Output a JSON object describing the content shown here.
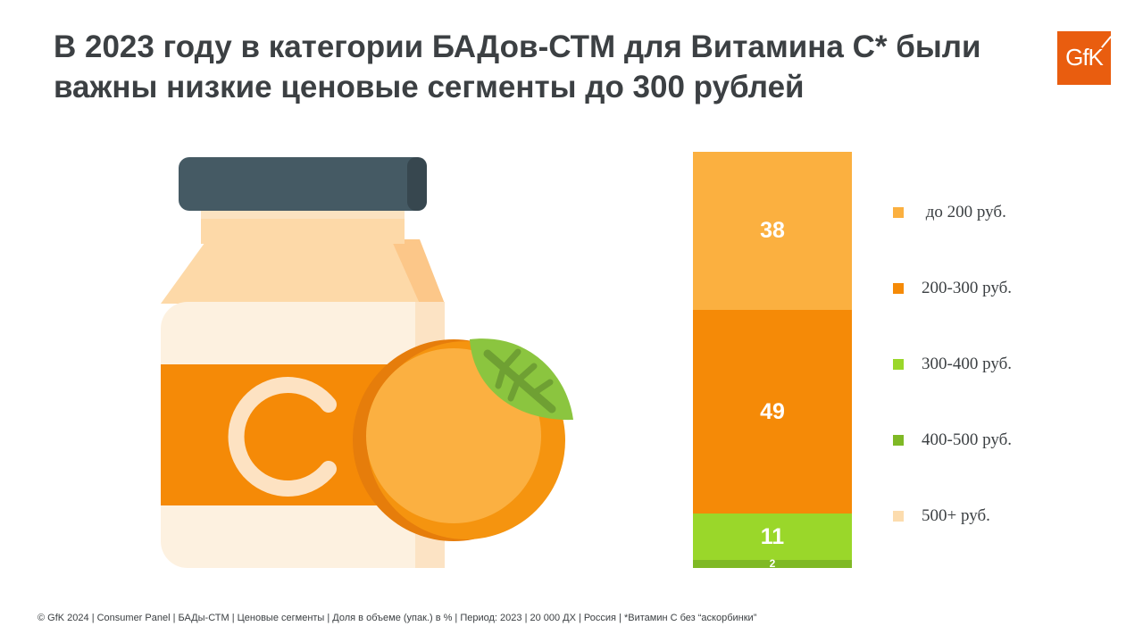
{
  "title": "В 2023 году в категории БАДов-СТМ для Витамина С* были важны низкие ценовые сегменты до 300 рублей",
  "logo": {
    "text": "GfK",
    "color": "#e95d0f"
  },
  "illustration": {
    "letter": "C"
  },
  "chart_data": {
    "type": "bar",
    "stacked": true,
    "title": "",
    "categories": [
      ""
    ],
    "series": [
      {
        "name": " до 200 руб.",
        "values": [
          38
        ],
        "color": "#fbb040"
      },
      {
        "name": "200-300 руб.",
        "values": [
          49
        ],
        "color": "#f58a07"
      },
      {
        "name": "300-400 руб.",
        "values": [
          11
        ],
        "color": "#9ad72a"
      },
      {
        "name": "400-500 руб.",
        "values": [
          2
        ],
        "color": "#7fb925"
      },
      {
        "name": "500+ руб.",
        "values": [
          0
        ],
        "color": "#fcdcae"
      }
    ],
    "data_labels": [
      "38",
      "49",
      "11",
      "2",
      ""
    ],
    "legend_position": "right"
  },
  "footer": "© GfK 2024 | Consumer Panel | БАДы-СТМ | Ценовые сегменты | Доля в объеме (упак.) в % | Период: 2023 | 20 000 ДХ | Россия | *Витамин С без “аскорбинки”"
}
